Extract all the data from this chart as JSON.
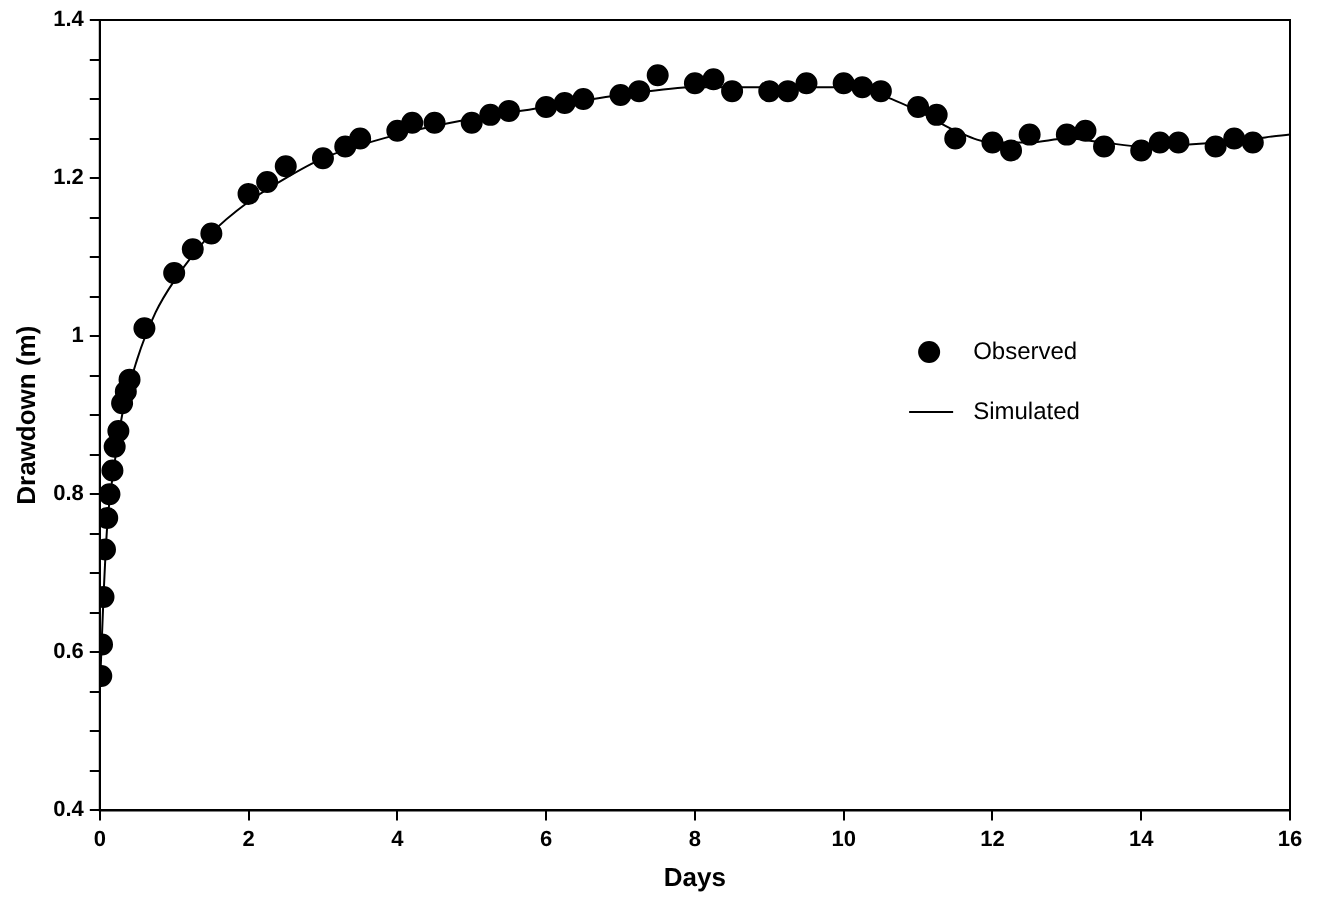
{
  "chart_data": {
    "type": "scatter",
    "xlabel": "Days",
    "ylabel": "Drawdown (m)",
    "xlim": [
      0,
      16
    ],
    "xticks": [
      0,
      2,
      4,
      6,
      8,
      10,
      12,
      14,
      16
    ],
    "ylim": [
      0.4,
      1.4
    ],
    "yticks": [
      {
        "value": 0.4,
        "label": "0.4"
      },
      {
        "value": 0.45,
        "label": null
      },
      {
        "value": 0.5,
        "label": null
      },
      {
        "value": 0.55,
        "label": null
      },
      {
        "value": 0.6,
        "label": "0.6"
      },
      {
        "value": 0.65,
        "label": null
      },
      {
        "value": 0.7,
        "label": null
      },
      {
        "value": 0.75,
        "label": null
      },
      {
        "value": 0.8,
        "label": "0.8"
      },
      {
        "value": 0.85,
        "label": null
      },
      {
        "value": 0.9,
        "label": null
      },
      {
        "value": 0.95,
        "label": null
      },
      1,
      {
        "value": 1.05,
        "label": null
      },
      {
        "value": 1.1,
        "label": null
      },
      {
        "value": 1.15,
        "label": null
      },
      {
        "value": 1.2,
        "label": "1.2"
      },
      {
        "value": 1.25,
        "label": null
      },
      {
        "value": 1.3,
        "label": null
      },
      {
        "value": 1.35,
        "label": null
      },
      {
        "value": 1.4,
        "label": "1.4"
      }
    ],
    "grid": false,
    "legend": "right",
    "series": [
      {
        "name": "Observed",
        "marker": "circle",
        "color": "#000000",
        "x": [
          0.02,
          0.03,
          0.05,
          0.07,
          0.1,
          0.13,
          0.17,
          0.2,
          0.25,
          0.3,
          0.35,
          0.4,
          0.6,
          1.0,
          1.25,
          1.5,
          2.0,
          2.25,
          2.5,
          3.0,
          3.3,
          3.5,
          4.0,
          4.2,
          4.5,
          5.0,
          5.25,
          5.5,
          6.0,
          6.25,
          6.5,
          7.0,
          7.25,
          7.5,
          8.0,
          8.25,
          8.5,
          9.0,
          9.25,
          9.5,
          10.0,
          10.25,
          10.5,
          11.0,
          11.25,
          11.5,
          12.0,
          12.25,
          12.5,
          13.0,
          13.25,
          13.5,
          14.0,
          14.25,
          14.5,
          15.0,
          15.25,
          15.5
        ],
        "values": [
          0.57,
          0.61,
          0.67,
          0.73,
          0.77,
          0.8,
          0.83,
          0.86,
          0.88,
          0.915,
          0.93,
          0.945,
          1.01,
          1.08,
          1.11,
          1.13,
          1.18,
          1.195,
          1.215,
          1.225,
          1.24,
          1.25,
          1.26,
          1.27,
          1.27,
          1.27,
          1.28,
          1.285,
          1.29,
          1.295,
          1.3,
          1.305,
          1.31,
          1.33,
          1.32,
          1.325,
          1.31,
          1.31,
          1.31,
          1.32,
          1.32,
          1.315,
          1.31,
          1.29,
          1.28,
          1.25,
          1.245,
          1.235,
          1.255,
          1.255,
          1.26,
          1.24,
          1.235,
          1.245,
          1.245,
          1.24,
          1.25,
          1.245
        ]
      },
      {
        "name": "Simulated",
        "type": "line",
        "marker": "none",
        "line_style": "solid",
        "color": "#000000",
        "x": [
          0,
          0.05,
          0.1,
          0.2,
          0.3,
          0.5,
          0.75,
          1,
          1.5,
          2,
          2.5,
          3,
          4,
          5,
          6,
          7,
          8,
          9,
          10,
          10.5,
          11,
          11.5,
          12,
          12.5,
          13,
          13.5,
          14,
          15,
          16
        ],
        "values": [
          0.55,
          0.67,
          0.76,
          0.84,
          0.9,
          0.97,
          1.03,
          1.07,
          1.13,
          1.17,
          1.2,
          1.225,
          1.255,
          1.275,
          1.29,
          1.305,
          1.315,
          1.315,
          1.315,
          1.305,
          1.285,
          1.26,
          1.245,
          1.245,
          1.25,
          1.245,
          1.24,
          1.245,
          1.255
        ]
      }
    ]
  }
}
